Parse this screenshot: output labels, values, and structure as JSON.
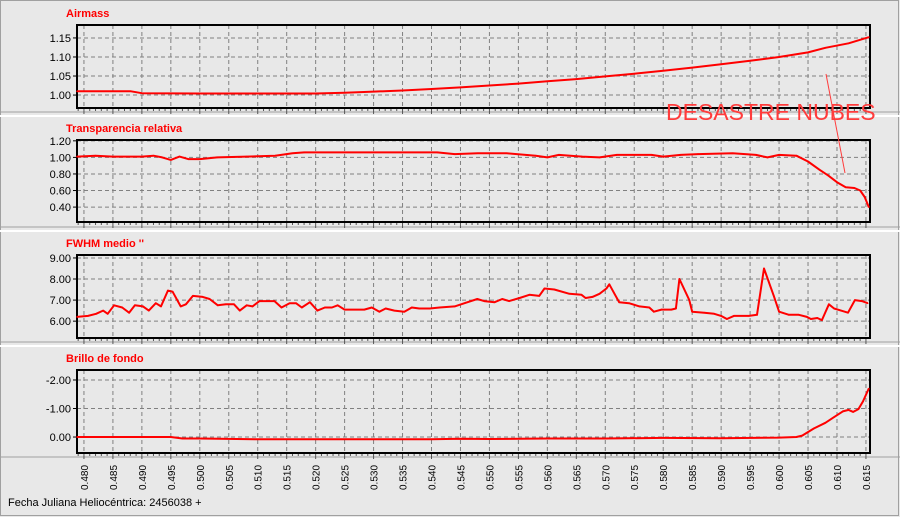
{
  "footer_label": "Fecha Juliana Heliocéntrica: 2456038 +",
  "annotation": "DESASTRE NUBES",
  "colors": {
    "series": "#ff0000",
    "title": "#ff0000",
    "annotation": "#ff3c3c",
    "background": "#e8e8e8",
    "grid": "#808080"
  },
  "chart_data": [
    {
      "type": "line",
      "title": "Airmass",
      "ylim": [
        0.966,
        1.184
      ],
      "yticks": [
        1.0,
        1.05,
        1.1,
        1.15
      ],
      "ytick_labels": [
        "1.00",
        "1.05",
        "1.10",
        "1.15"
      ],
      "inverted": false,
      "grid": true,
      "x": [
        0.4788,
        0.488,
        0.49,
        0.5,
        0.51,
        0.52,
        0.525,
        0.53,
        0.535,
        0.54,
        0.545,
        0.55,
        0.555,
        0.56,
        0.565,
        0.57,
        0.575,
        0.58,
        0.585,
        0.59,
        0.595,
        0.6,
        0.605,
        0.608,
        0.612,
        0.6155
      ],
      "y": [
        1.01,
        1.01,
        1.005,
        1.004,
        1.004,
        1.004,
        1.006,
        1.009,
        1.012,
        1.016,
        1.02,
        1.025,
        1.03,
        1.036,
        1.042,
        1.049,
        1.056,
        1.064,
        1.072,
        1.081,
        1.09,
        1.1,
        1.112,
        1.124,
        1.136,
        1.152
      ]
    },
    {
      "type": "line",
      "title": "Transparencia relativa",
      "ylim": [
        0.22,
        1.21
      ],
      "yticks": [
        0.4,
        0.6,
        0.8,
        1.0,
        1.2
      ],
      "ytick_labels": [
        "0.40",
        "0.60",
        "0.80",
        "1.00",
        "1.20"
      ],
      "inverted": false,
      "grid": true,
      "x": [
        0.4788,
        0.482,
        0.485,
        0.49,
        0.492,
        0.4935,
        0.495,
        0.4965,
        0.498,
        0.5,
        0.503,
        0.508,
        0.513,
        0.516,
        0.518,
        0.525,
        0.535,
        0.541,
        0.544,
        0.548,
        0.553,
        0.558,
        0.56,
        0.562,
        0.566,
        0.569,
        0.572,
        0.578,
        0.58,
        0.583,
        0.586,
        0.592,
        0.596,
        0.598,
        0.6,
        0.603,
        0.605,
        0.607,
        0.6085,
        0.61,
        0.6115,
        0.613,
        0.614,
        0.6148,
        0.6155
      ],
      "y": [
        1.01,
        1.02,
        1.01,
        1.01,
        1.02,
        1.0,
        0.97,
        1.01,
        0.98,
        0.98,
        1.0,
        1.01,
        1.02,
        1.05,
        1.06,
        1.06,
        1.06,
        1.06,
        1.04,
        1.05,
        1.05,
        1.02,
        1.0,
        1.03,
        1.01,
        1.0,
        1.03,
        1.03,
        1.01,
        1.03,
        1.04,
        1.05,
        1.03,
        1.0,
        1.03,
        1.02,
        0.95,
        0.85,
        0.78,
        0.7,
        0.64,
        0.63,
        0.6,
        0.52,
        0.4
      ]
    },
    {
      "type": "line",
      "title": "FWHM medio ''",
      "ylim": [
        5.2,
        9.14
      ],
      "yticks": [
        6.0,
        7.0,
        8.0,
        9.0
      ],
      "ytick_labels": [
        "6.00",
        "7.00",
        "8.00",
        "9.00"
      ],
      "inverted": false,
      "grid": true,
      "x": [
        0.4788,
        0.4807,
        0.4821,
        0.4833,
        0.4841,
        0.4852,
        0.4866,
        0.4878,
        0.4888,
        0.4902,
        0.4912,
        0.4924,
        0.4933,
        0.4945,
        0.4953,
        0.4967,
        0.4976,
        0.4988,
        0.5005,
        0.5017,
        0.5031,
        0.5045,
        0.5059,
        0.5069,
        0.5081,
        0.5091,
        0.5103,
        0.5129,
        0.5141,
        0.5155,
        0.5166,
        0.5176,
        0.519,
        0.5203,
        0.5216,
        0.5228,
        0.5238,
        0.525,
        0.5284,
        0.5297,
        0.531,
        0.5321,
        0.5336,
        0.5353,
        0.5366,
        0.5379,
        0.5397,
        0.5414,
        0.544,
        0.5457,
        0.5479,
        0.5491,
        0.5509,
        0.5522,
        0.5534,
        0.5552,
        0.5569,
        0.5586,
        0.5595,
        0.5612,
        0.5638,
        0.5659,
        0.5666,
        0.5678,
        0.569,
        0.5702,
        0.5707,
        0.5716,
        0.5724,
        0.5741,
        0.5759,
        0.5776,
        0.5784,
        0.5797,
        0.5814,
        0.5822,
        0.5828,
        0.5845,
        0.585,
        0.5871,
        0.5888,
        0.59,
        0.591,
        0.5922,
        0.5948,
        0.5962,
        0.5974,
        0.5991,
        0.6,
        0.6017,
        0.6034,
        0.6048,
        0.6055,
        0.6066,
        0.6074,
        0.6086,
        0.6095,
        0.6107,
        0.6119,
        0.6131,
        0.6143,
        0.6153
      ],
      "y": [
        6.2,
        6.25,
        6.35,
        6.5,
        6.35,
        6.75,
        6.65,
        6.4,
        6.75,
        6.7,
        6.5,
        6.85,
        6.7,
        7.45,
        7.4,
        6.7,
        6.8,
        7.2,
        7.15,
        7.05,
        6.75,
        6.8,
        6.8,
        6.5,
        6.75,
        6.7,
        6.95,
        6.95,
        6.65,
        6.85,
        6.85,
        6.65,
        6.9,
        6.5,
        6.65,
        6.65,
        6.75,
        6.55,
        6.55,
        6.65,
        6.45,
        6.6,
        6.5,
        6.45,
        6.65,
        6.6,
        6.6,
        6.65,
        6.7,
        6.85,
        7.05,
        6.95,
        6.9,
        7.05,
        6.95,
        7.1,
        7.25,
        7.2,
        7.55,
        7.5,
        7.3,
        7.25,
        7.1,
        7.15,
        7.3,
        7.55,
        7.75,
        7.3,
        6.9,
        6.85,
        6.7,
        6.65,
        6.45,
        6.55,
        6.55,
        6.6,
        8.0,
        7.0,
        6.45,
        6.4,
        6.35,
        6.25,
        6.1,
        6.25,
        6.25,
        6.3,
        8.5,
        7.2,
        6.45,
        6.3,
        6.3,
        6.2,
        6.1,
        6.15,
        6.05,
        6.8,
        6.6,
        6.5,
        6.4,
        7.0,
        6.95,
        6.85
      ]
    },
    {
      "type": "line",
      "title": "Brillo de fondo",
      "ylim": [
        -2.35,
        0.56
      ],
      "yticks": [
        -2.0,
        -1.0,
        0.0
      ],
      "ytick_labels": [
        "-2.00",
        "-1.00",
        "0.00"
      ],
      "inverted": true,
      "grid": true,
      "x": [
        0.4788,
        0.49,
        0.495,
        0.497,
        0.5,
        0.51,
        0.52,
        0.53,
        0.54,
        0.545,
        0.55,
        0.56,
        0.57,
        0.58,
        0.59,
        0.6,
        0.603,
        0.604,
        0.606,
        0.608,
        0.6095,
        0.611,
        0.612,
        0.6128,
        0.6137,
        0.6145,
        0.6155
      ],
      "y": [
        0.0,
        0.0,
        0.0,
        0.05,
        0.05,
        0.08,
        0.08,
        0.08,
        0.08,
        0.06,
        0.07,
        0.05,
        0.05,
        0.03,
        0.04,
        0.02,
        0.0,
        -0.05,
        -0.3,
        -0.5,
        -0.7,
        -0.9,
        -0.95,
        -0.88,
        -0.98,
        -1.25,
        -1.7
      ]
    }
  ],
  "x_axis": {
    "ticks": [
      0.48,
      0.485,
      0.49,
      0.495,
      0.5,
      0.505,
      0.51,
      0.515,
      0.52,
      0.525,
      0.53,
      0.535,
      0.54,
      0.545,
      0.55,
      0.555,
      0.56,
      0.565,
      0.57,
      0.575,
      0.58,
      0.585,
      0.59,
      0.595,
      0.6,
      0.605,
      0.61,
      0.615
    ],
    "tick_labels": [
      "0.480",
      "0.485",
      "0.490",
      "0.495",
      "0.500",
      "0.505",
      "0.510",
      "0.515",
      "0.520",
      "0.525",
      "0.530",
      "0.535",
      "0.540",
      "0.545",
      "0.550",
      "0.555",
      "0.560",
      "0.565",
      "0.570",
      "0.575",
      "0.580",
      "0.585",
      "0.590",
      "0.595",
      "0.600",
      "0.605",
      "0.610",
      "0.615"
    ],
    "xlim": [
      0.4788,
      0.6157
    ]
  }
}
